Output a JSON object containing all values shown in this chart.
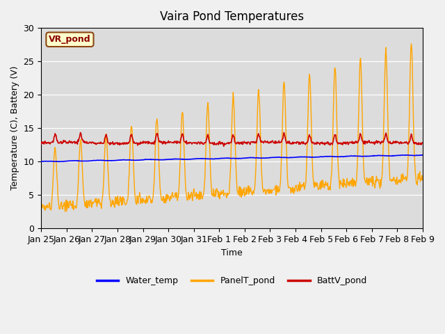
{
  "title": "Vaira Pond Temperatures",
  "ylabel": "Temperature (C), Battery (V)",
  "xlabel": "Time",
  "annotation": "VR_pond",
  "ylim": [
    0,
    30
  ],
  "tick_labels": [
    "Jan 25",
    "Jan 26",
    "Jan 27",
    "Jan 28",
    "Jan 29",
    "Jan 30",
    "Jan 31",
    "Feb 1",
    "Feb 2",
    "Feb 3",
    "Feb 4",
    "Feb 5",
    "Feb 6",
    "Feb 7",
    "Feb 8",
    "Feb 9"
  ],
  "water_color": "#0000ff",
  "panel_color": "#ffa500",
  "battv_color": "#cc0000",
  "bg_color": "#dcdcdc",
  "fig_bg": "#f0f0f0",
  "legend_labels": [
    "Water_temp",
    "PanelT_pond",
    "BattV_pond"
  ]
}
